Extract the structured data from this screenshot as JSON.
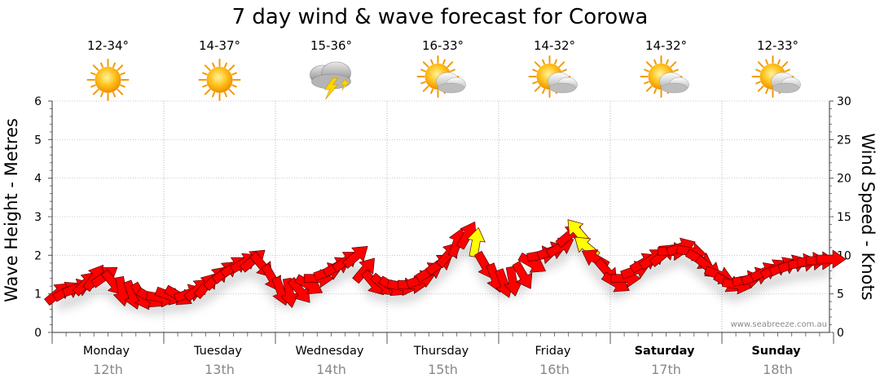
{
  "chart_data": {
    "type": "scatter",
    "title": "7 day wind & wave forecast for Corowa",
    "ylabel_left": "Wave Height - Metres",
    "ylabel_right": "Wind Speed - Knots",
    "ylim_left": [
      0,
      6
    ],
    "ylim_right": [
      0,
      30
    ],
    "yticks_left": [
      "0",
      "1",
      "2",
      "3",
      "4",
      "5",
      "6"
    ],
    "yticks_right": [
      "0",
      "5",
      "10",
      "15",
      "20",
      "25",
      "30"
    ],
    "grid": true,
    "days": [
      {
        "name": "Monday",
        "date": "12th",
        "temp": "12-34°",
        "weather": "sunny-icon",
        "bold": false
      },
      {
        "name": "Tuesday",
        "date": "13th",
        "temp": "14-37°",
        "weather": "sunny-icon",
        "bold": false
      },
      {
        "name": "Wednesday",
        "date": "14th",
        "temp": "15-36°",
        "weather": "thunderstorm-icon",
        "bold": false
      },
      {
        "name": "Thursday",
        "date": "15th",
        "temp": "16-33°",
        "weather": "partly-cloudy-icon",
        "bold": false
      },
      {
        "name": "Friday",
        "date": "16th",
        "temp": "14-32°",
        "weather": "partly-cloudy-icon",
        "bold": false
      },
      {
        "name": "Saturday",
        "date": "17th",
        "temp": "14-32°",
        "weather": "partly-cloudy-icon",
        "bold": true
      },
      {
        "name": "Sunday",
        "date": "18th",
        "temp": "12-33°",
        "weather": "partly-cloudy-icon",
        "bold": true
      }
    ],
    "wind_series": {
      "name": "Wind speed (knots) and direction",
      "x_unit": "days from Monday 00:00",
      "x": [
        0.0,
        0.08,
        0.17,
        0.25,
        0.33,
        0.42,
        0.5,
        0.58,
        0.67,
        0.75,
        0.83,
        0.92,
        1.0,
        1.08,
        1.17,
        1.25,
        1.33,
        1.42,
        1.5,
        1.58,
        1.67,
        1.75,
        1.83,
        1.92,
        2.0,
        2.08,
        2.17,
        2.25,
        2.33,
        2.42,
        2.5,
        2.58,
        2.67,
        2.75,
        2.83,
        2.92,
        3.0,
        3.08,
        3.17,
        3.25,
        3.33,
        3.42,
        3.5,
        3.58,
        3.67,
        3.75,
        3.83,
        3.92,
        4.0,
        4.08,
        4.17,
        4.25,
        4.33,
        4.42,
        4.5,
        4.58,
        4.67,
        4.75,
        4.83,
        4.92,
        5.0,
        5.08,
        5.17,
        5.25,
        5.33,
        5.42,
        5.5,
        5.58,
        5.67,
        5.75,
        5.83,
        5.92,
        6.0,
        6.08,
        6.17,
        6.25,
        6.33,
        6.42,
        6.5,
        6.58,
        6.67,
        6.75,
        6.83,
        6.92
      ],
      "speed_knots": [
        5.0,
        5.3,
        5.7,
        6.3,
        7.0,
        7.2,
        6.5,
        5.5,
        5.0,
        4.8,
        4.5,
        4.5,
        4.8,
        4.8,
        5.0,
        5.5,
        6.0,
        7.0,
        7.8,
        8.5,
        9.0,
        9.3,
        8.8,
        7.2,
        5.5,
        5.3,
        5.5,
        6.2,
        7.0,
        7.8,
        8.5,
        9.2,
        9.8,
        8.0,
        6.5,
        6.2,
        6.0,
        6.0,
        6.2,
        6.8,
        7.8,
        8.8,
        10.0,
        11.5,
        12.5,
        11.5,
        8.8,
        7.2,
        6.5,
        6.8,
        7.5,
        9.0,
        10.0,
        10.5,
        11.0,
        12.5,
        13.0,
        11.0,
        9.5,
        8.0,
        6.5,
        7.0,
        8.0,
        9.0,
        9.5,
        10.0,
        10.5,
        11.0,
        10.5,
        9.5,
        8.5,
        7.5,
        6.5,
        6.2,
        6.8,
        7.2,
        7.8,
        8.2,
        8.5,
        8.8,
        9.0,
        9.2,
        9.3,
        9.5
      ],
      "direction_from_deg": [
        230,
        240,
        250,
        225,
        215,
        235,
        320,
        350,
        340,
        330,
        300,
        280,
        290,
        300,
        250,
        230,
        220,
        225,
        230,
        235,
        240,
        230,
        320,
        330,
        340,
        350,
        320,
        300,
        270,
        250,
        240,
        235,
        230,
        220,
        320,
        310,
        300,
        280,
        270,
        250,
        240,
        235,
        220,
        200,
        210,
        190,
        330,
        340,
        340,
        350,
        330,
        300,
        260,
        250,
        240,
        230,
        140,
        130,
        120,
        320,
        300,
        270,
        250,
        240,
        235,
        230,
        270,
        250,
        280,
        300,
        310,
        290,
        300,
        280,
        260,
        250,
        245,
        240,
        245,
        250,
        260,
        265,
        270,
        270
      ],
      "highlight_color": "#ffff00",
      "normal_color": "#ff0000"
    },
    "watermark": "www.seabreeze.com.au"
  }
}
